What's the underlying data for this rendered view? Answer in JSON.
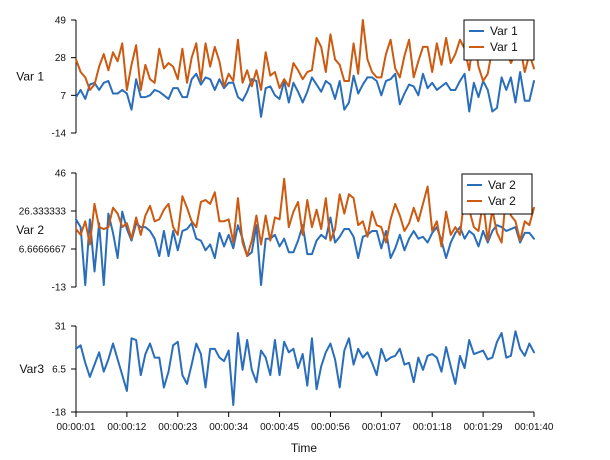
{
  "chart_data": {
    "type": "line",
    "xlabel": "Time",
    "x_tick_labels": [
      "00:00:01",
      "00:00:12",
      "00:00:23",
      "00:00:34",
      "00:00:45",
      "00:00:56",
      "00:01:07",
      "00:01:18",
      "00:01:29",
      "00:01:40"
    ],
    "x_range": [
      1,
      100
    ],
    "colors": {
      "blue": "#2a6ebb",
      "orange": "#cc5a10"
    },
    "subplots": [
      {
        "ylabel": "Var 1",
        "ylim": [
          -14,
          49
        ],
        "yticks": [
          "-14",
          "7",
          "28",
          "49"
        ],
        "legend": "top-right",
        "series": [
          {
            "name": "Var 1",
            "color": "#2a6ebb",
            "values": [
              6,
              10,
              5,
              13,
              14,
              10,
              14,
              15,
              8,
              8,
              10,
              8,
              -1,
              16,
              6,
              6,
              7,
              10,
              9,
              7,
              5,
              11,
              11,
              6,
              6,
              16,
              19,
              13,
              17,
              16,
              10,
              16,
              11,
              14,
              14,
              6,
              4,
              9,
              16,
              15,
              -5,
              11,
              12,
              7,
              5,
              15,
              3,
              14,
              9,
              3,
              9,
              17,
              13,
              9,
              15,
              13,
              5,
              15,
              -1,
              3,
              18,
              8,
              13,
              17,
              17,
              15,
              7,
              15,
              16,
              19,
              2,
              8,
              13,
              12,
              7,
              19,
              11,
              14,
              10,
              12,
              14,
              10,
              10,
              15,
              19,
              -2,
              14,
              6,
              15,
              10,
              -2,
              0,
              17,
              10,
              17,
              3,
              20,
              4,
              4,
              15
            ]
          },
          {
            "name": "Var 1",
            "color": "#cc5a10",
            "values": [
              27,
              20,
              17,
              10,
              13,
              23,
              30,
              21,
              31,
              26,
              36,
              10,
              24,
              35,
              10,
              24,
              16,
              14,
              33,
              22,
              25,
              23,
              16,
              33,
              14,
              28,
              36,
              15,
              36,
              23,
              34,
              26,
              12,
              19,
              15,
              38,
              14,
              21,
              12,
              21,
              10,
              31,
              18,
              20,
              11,
              16,
              12,
              25,
              21,
              16,
              20,
              21,
              39,
              34,
              20,
              41,
              27,
              24,
              15,
              15,
              36,
              19,
              49,
              27,
              20,
              17,
              17,
              30,
              38,
              22,
              17,
              29,
              38,
              17,
              26,
              34,
              34,
              20,
              36,
              24,
              39,
              25,
              30,
              38,
              33,
              21,
              41,
              23,
              15,
              19,
              33,
              29,
              29,
              33,
              25,
              30,
              34,
              20,
              30,
              22
            ]
          }
        ]
      },
      {
        "ylabel": "Var 2",
        "ylim": [
          -13,
          46
        ],
        "yticks": [
          "-13",
          "6.6666667",
          "26.333333",
          "46"
        ],
        "legend": "top-right",
        "series": [
          {
            "name": "Var 2",
            "color": "#2a6ebb",
            "values": [
              22,
              18,
              -12,
              22,
              -5,
              20,
              -12,
              25,
              15,
              2,
              26,
              17,
              11,
              20,
              18,
              18,
              16,
              12,
              3,
              16,
              3,
              16,
              6,
              16,
              17,
              20,
              12,
              11,
              6,
              9,
              2,
              15,
              8,
              14,
              7,
              19,
              12,
              3,
              5,
              19,
              -12,
              12,
              12,
              14,
              8,
              12,
              5,
              5,
              11,
              19,
              4,
              4,
              11,
              14,
              12,
              23,
              10,
              13,
              17,
              17,
              13,
              2,
              13,
              14,
              16,
              16,
              7,
              16,
              2,
              7,
              14,
              6,
              12,
              16,
              12,
              13,
              10,
              15,
              18,
              11,
              2,
              10,
              15,
              18,
              12,
              16,
              14,
              8,
              16,
              10,
              16,
              19,
              18,
              16,
              17,
              18,
              10,
              15,
              15,
              12
            ]
          },
          {
            "name": "Var 2",
            "color": "#cc5a10",
            "values": [
              17,
              14,
              21,
              9,
              30,
              18,
              17,
              18,
              28,
              25,
              18,
              20,
              12,
              23,
              14,
              24,
              29,
              21,
              22,
              27,
              30,
              18,
              14,
              34,
              28,
              21,
              18,
              31,
              32,
              30,
              36,
              21,
              21,
              22,
              10,
              33,
              10,
              3,
              11,
              24,
              9,
              24,
              11,
              23,
              22,
              43,
              18,
              26,
              31,
              14,
              32,
              18,
              27,
              17,
              33,
              11,
              17,
              35,
              25,
              35,
              33,
              19,
              21,
              13,
              26,
              19,
              18,
              10,
              22,
              30,
              24,
              16,
              20,
              28,
              21,
              30,
              39,
              16,
              21,
              8,
              26,
              14,
              18,
              14,
              34,
              27,
              18,
              16,
              31,
              11,
              27,
              15,
              10,
              35,
              24,
              21,
              11,
              21,
              19,
              28
            ]
          }
        ]
      },
      {
        "ylabel": "Var3",
        "ylim": [
          -18,
          31
        ],
        "yticks": [
          "-18",
          "6.5",
          "31"
        ],
        "legend": "",
        "series": [
          {
            "name": "",
            "color": "#2a6ebb",
            "values": [
              18,
              20,
              10,
              2,
              9,
              16,
              5,
              12,
              21,
              12,
              3,
              -6,
              24,
              23,
              3,
              15,
              21,
              13,
              13,
              -4,
              5,
              20,
              22,
              3,
              -2,
              9,
              21,
              15,
              -4,
              18,
              18,
              13,
              11,
              17,
              -14,
              27,
              6,
              23,
              6,
              -1,
              17,
              13,
              3,
              23,
              3,
              22,
              16,
              18,
              7,
              15,
              -3,
              24,
              -5,
              8,
              16,
              21,
              12,
              -4,
              17,
              24,
              9,
              18,
              13,
              16,
              10,
              3,
              18,
              11,
              13,
              14,
              18,
              9,
              10,
              -1,
              13,
              6,
              14,
              15,
              13,
              5,
              19,
              8,
              -2,
              14,
              7,
              23,
              15,
              16,
              17,
              12,
              13,
              22,
              27,
              13,
              14,
              28,
              18,
              14,
              21,
              16
            ]
          }
        ]
      }
    ]
  }
}
